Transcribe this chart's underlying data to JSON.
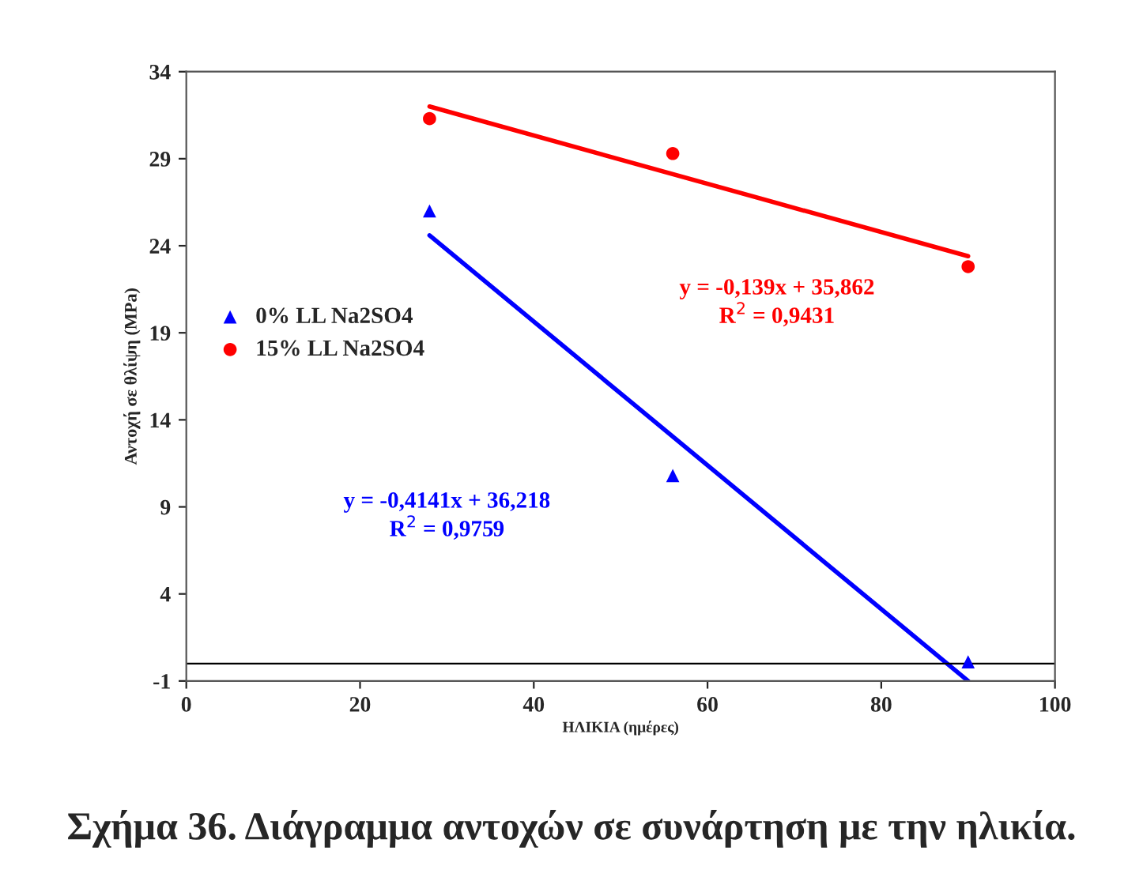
{
  "chart_data": {
    "type": "scatter",
    "xlabel": "ΗΛΙΚΙΑ (ημέρες)",
    "ylabel": "Αντοχή σε θλίψη (MPa)",
    "xlim": [
      0,
      100
    ],
    "xticks": [
      0,
      20,
      40,
      60,
      80,
      100
    ],
    "ylim": [
      -1,
      34
    ],
    "yticks": [
      -1,
      4,
      9,
      14,
      19,
      24,
      29,
      34
    ],
    "legend": "left",
    "grid": false,
    "series": [
      {
        "name": "0% LL Na2SO4",
        "color": "#0000ff",
        "marker": "triangle",
        "x": [
          28,
          56,
          90
        ],
        "values": [
          26.0,
          10.8,
          0.1
        ]
      },
      {
        "name": "15% LL Na2SO4",
        "color": "#ff0000",
        "marker": "circle",
        "x": [
          28,
          56,
          90
        ],
        "values": [
          31.3,
          29.3,
          22.8
        ]
      },
      {
        "type": "line",
        "color": "#0000ff",
        "x": [
          28,
          90
        ],
        "values": [
          24.6,
          -1.0
        ]
      },
      {
        "type": "line",
        "color": "#ff0000",
        "x": [
          28,
          90
        ],
        "values": [
          32.0,
          23.4
        ]
      }
    ],
    "ref_lines": [
      {
        "axis": "y",
        "value": 0,
        "color": "#000000"
      }
    ],
    "annotations": [
      "y = -0,4141x + 36,218\nR$^{2}$ = 0,9759",
      "y = -0,139x + 35,862\nR$^{2}$ = 0,9431",
      "Σχήμα 36. Διάγραμμα αντοχών σε συνάρτηση με την ηλικία."
    ]
  }
}
